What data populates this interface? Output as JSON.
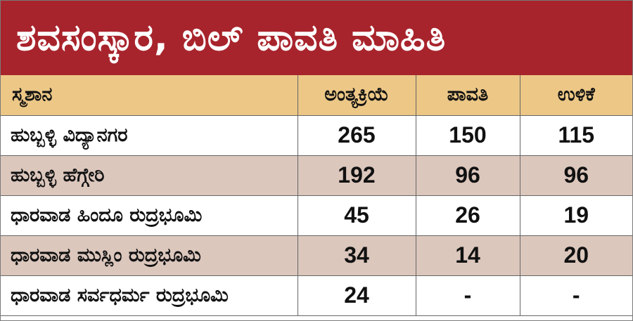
{
  "header": {
    "title": "ಶವಸಂಸ್ಕಾರ, ಬಿಲ್ ಪಾವತಿ ಮಾಹಿತಿ"
  },
  "colors": {
    "title_bg": "#a8242c",
    "header_row_bg": "#ecc786",
    "alt_row_bg": "#dcc7bd"
  },
  "chart_data": {
    "type": "table",
    "title": "ಶವಸಂಸ್ಕಾರ, ಬಿಲ್ ಪಾವತಿ ಮಾಹಿತಿ",
    "columns": [
      "ಸ್ಮಶಾನ",
      "ಅಂತ್ಯಕ್ರಿಯೆ",
      "ಪಾವತಿ",
      "ಉಳಿಕೆ"
    ],
    "rows": [
      {
        "name": "ಹುಬ್ಬಳ್ಳಿ ವಿದ್ಯಾನಗರ",
        "values": [
          "265",
          "150",
          "115"
        ]
      },
      {
        "name": "ಹುಬ್ಬಳ್ಳಿ ಹೆಗ್ಗೇರಿ",
        "values": [
          "192",
          "96",
          "96"
        ]
      },
      {
        "name": "ಧಾರವಾಡ ಹಿಂದೂ ರುದ್ರಭೂಮಿ",
        "values": [
          "45",
          "26",
          "19"
        ]
      },
      {
        "name": "ಧಾರವಾಡ ಮುಸ್ಲಿಂ ರುದ್ರಭೂಮಿ",
        "values": [
          "34",
          "14",
          "20"
        ]
      },
      {
        "name": "ಧಾರವಾಡ ಸರ್ವಧರ್ಮ ರುದ್ರಭೂಮಿ",
        "values": [
          "24",
          "-",
          "-"
        ]
      }
    ]
  }
}
